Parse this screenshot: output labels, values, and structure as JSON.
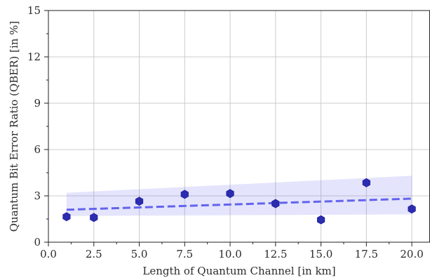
{
  "chart_data": {
    "type": "scatter",
    "title": "",
    "xlabel": "Length of Quantum Channel [in km]",
    "ylabel": "Quantum Bit Error Ratio (QBER) [in %]",
    "xlim": [
      0,
      21
    ],
    "ylim": [
      0,
      15
    ],
    "x_ticks": [
      0,
      2.5,
      5,
      7.5,
      10,
      12.5,
      15,
      17.5,
      20
    ],
    "x_tick_labels": [
      "0.0",
      "2.5",
      "5.0",
      "7.5",
      "10.0",
      "12.5",
      "15.0",
      "17.5",
      "20.0"
    ],
    "y_ticks": [
      0,
      3,
      6,
      9,
      12,
      15
    ],
    "y_tick_labels": [
      "0",
      "3",
      "6",
      "9",
      "12",
      "15"
    ],
    "grid": true,
    "series": [
      {
        "kind": "points",
        "marker": "hexagon",
        "color": "#2c2cb0",
        "x": [
          1,
          2.5,
          5,
          7.5,
          10,
          12.5,
          15,
          17.5,
          20
        ],
        "y": [
          1.65,
          1.6,
          2.65,
          3.1,
          3.15,
          2.5,
          1.45,
          3.85,
          2.15
        ]
      },
      {
        "kind": "trend",
        "style": "dashed",
        "color": "#6363ee",
        "x": [
          1,
          20
        ],
        "y": [
          2.1,
          2.82
        ]
      },
      {
        "kind": "confidence-band",
        "color": "#6b6bf0",
        "opacity": 0.18,
        "x": [
          1,
          20
        ],
        "upper": [
          3.2,
          4.3
        ],
        "lower": [
          1.7,
          1.8
        ]
      }
    ]
  }
}
